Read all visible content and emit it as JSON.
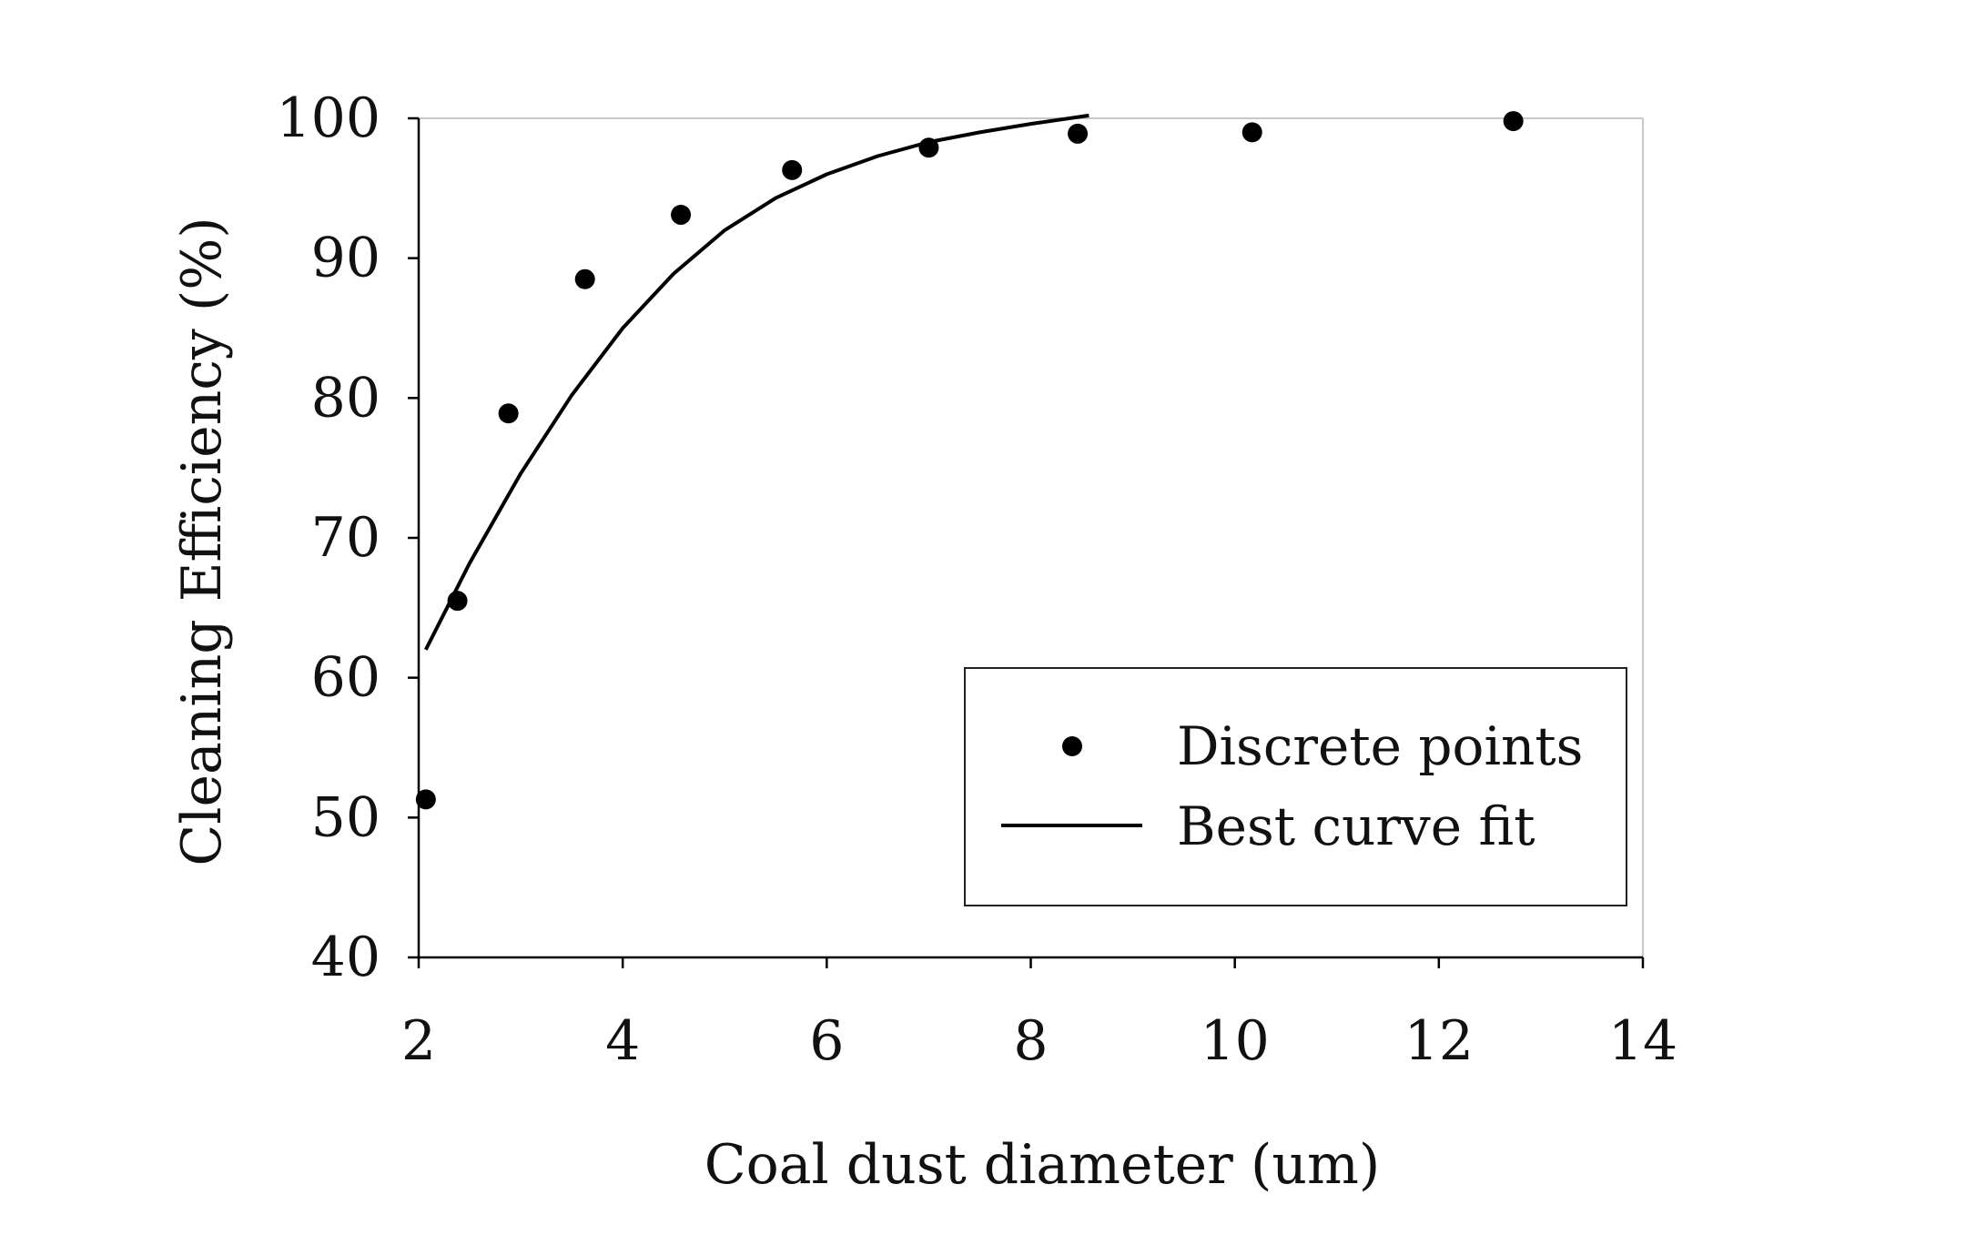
{
  "chart_data": {
    "type": "scatter",
    "title": "",
    "xlabel": "Coal dust diameter (um)",
    "ylabel": "Cleaning Efficiency (%)",
    "xlim": [
      2,
      14
    ],
    "ylim": [
      40,
      100
    ],
    "xticks": [
      2,
      4,
      6,
      8,
      10,
      12,
      14
    ],
    "yticks": [
      40,
      50,
      60,
      70,
      80,
      90,
      100
    ],
    "grid": false,
    "legend_placement": "bottom-right",
    "series": [
      {
        "name": "Discrete points",
        "kind": "scatter",
        "x": [
          2.07,
          2.38,
          2.88,
          3.63,
          4.57,
          5.66,
          7.0,
          8.46,
          10.17,
          12.73
        ],
        "y": [
          51.3,
          65.5,
          78.9,
          88.5,
          93.1,
          96.3,
          97.9,
          98.9,
          99.0,
          99.8
        ]
      },
      {
        "name": "Best curve fit",
        "kind": "line",
        "x": [
          2.07,
          2.5,
          3.0,
          3.5,
          4.0,
          4.5,
          5.0,
          5.5,
          6.0,
          6.5,
          7.0,
          7.5,
          8.0,
          8.57
        ],
        "y": [
          62.0,
          68.2,
          74.6,
          80.2,
          85.0,
          88.9,
          92.0,
          94.3,
          96.0,
          97.3,
          98.3,
          99.0,
          99.6,
          100.2
        ]
      }
    ]
  }
}
